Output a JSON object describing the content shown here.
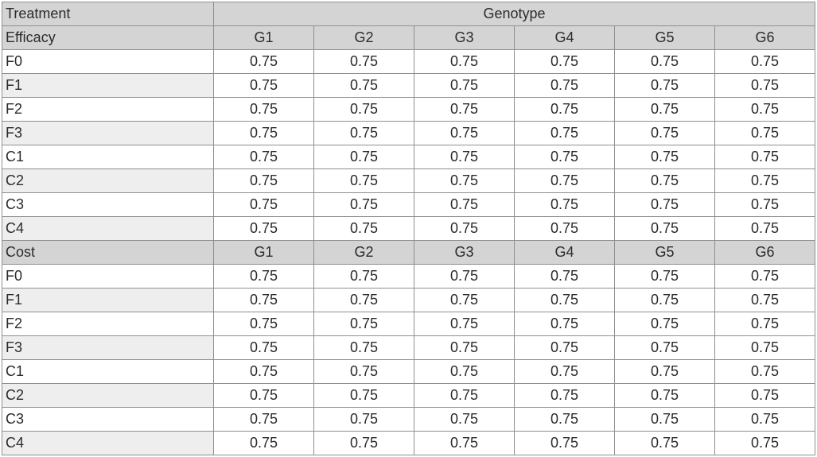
{
  "table": {
    "corner_label": "Treatment",
    "group_label": "Genotype",
    "genotypes": [
      "G1",
      "G2",
      "G3",
      "G4",
      "G5",
      "G6"
    ],
    "sections": [
      {
        "name": "Efficacy",
        "rows": [
          {
            "treatment": "F0",
            "values": [
              "0.75",
              "0.75",
              "0.75",
              "0.75",
              "0.75",
              "0.75"
            ]
          },
          {
            "treatment": "F1",
            "values": [
              "0.75",
              "0.75",
              "0.75",
              "0.75",
              "0.75",
              "0.75"
            ]
          },
          {
            "treatment": "F2",
            "values": [
              "0.75",
              "0.75",
              "0.75",
              "0.75",
              "0.75",
              "0.75"
            ]
          },
          {
            "treatment": "F3",
            "values": [
              "0.75",
              "0.75",
              "0.75",
              "0.75",
              "0.75",
              "0.75"
            ]
          },
          {
            "treatment": "C1",
            "values": [
              "0.75",
              "0.75",
              "0.75",
              "0.75",
              "0.75",
              "0.75"
            ]
          },
          {
            "treatment": "C2",
            "values": [
              "0.75",
              "0.75",
              "0.75",
              "0.75",
              "0.75",
              "0.75"
            ]
          },
          {
            "treatment": "C3",
            "values": [
              "0.75",
              "0.75",
              "0.75",
              "0.75",
              "0.75",
              "0.75"
            ]
          },
          {
            "treatment": "C4",
            "values": [
              "0.75",
              "0.75",
              "0.75",
              "0.75",
              "0.75",
              "0.75"
            ]
          }
        ]
      },
      {
        "name": "Cost",
        "rows": [
          {
            "treatment": "F0",
            "values": [
              "0.75",
              "0.75",
              "0.75",
              "0.75",
              "0.75",
              "0.75"
            ]
          },
          {
            "treatment": "F1",
            "values": [
              "0.75",
              "0.75",
              "0.75",
              "0.75",
              "0.75",
              "0.75"
            ]
          },
          {
            "treatment": "F2",
            "values": [
              "0.75",
              "0.75",
              "0.75",
              "0.75",
              "0.75",
              "0.75"
            ]
          },
          {
            "treatment": "F3",
            "values": [
              "0.75",
              "0.75",
              "0.75",
              "0.75",
              "0.75",
              "0.75"
            ]
          },
          {
            "treatment": "C1",
            "values": [
              "0.75",
              "0.75",
              "0.75",
              "0.75",
              "0.75",
              "0.75"
            ]
          },
          {
            "treatment": "C2",
            "values": [
              "0.75",
              "0.75",
              "0.75",
              "0.75",
              "0.75",
              "0.75"
            ]
          },
          {
            "treatment": "C3",
            "values": [
              "0.75",
              "0.75",
              "0.75",
              "0.75",
              "0.75",
              "0.75"
            ]
          },
          {
            "treatment": "C4",
            "values": [
              "0.75",
              "0.75",
              "0.75",
              "0.75",
              "0.75",
              "0.75"
            ]
          }
        ]
      }
    ]
  },
  "colors": {
    "header_bg": "#d4d4d4",
    "shaded_label_bg": "#eeeeee",
    "border": "#8f8f8f",
    "text": "#2b2b2b"
  }
}
